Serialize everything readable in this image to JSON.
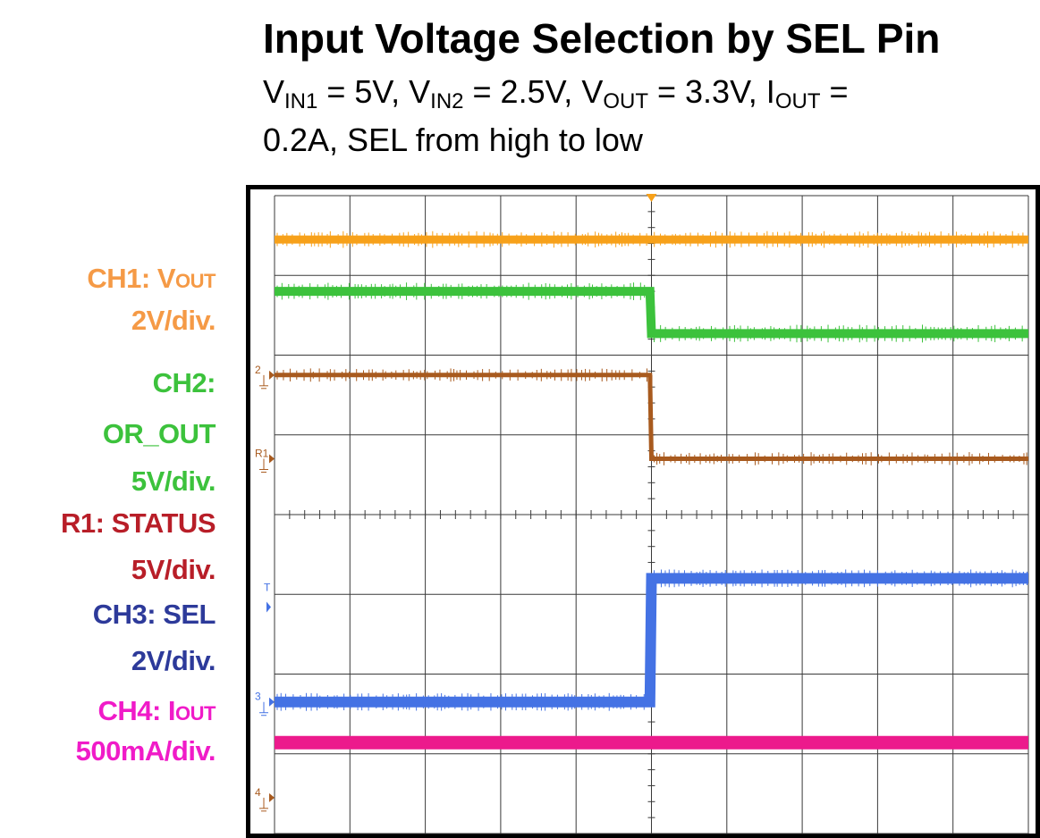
{
  "title": "Input Voltage Selection by SEL Pin",
  "subtitle": {
    "v": "V",
    "in1": "IN1",
    "eq1": " = 5V, ",
    "in2": "IN2",
    "eq2": " = 2.5V, ",
    "out": "OUT",
    "eq3": " = 3.3V, ",
    "i": "I",
    "eq4": " = ",
    "line2": "0.2A, SEL from high to low"
  },
  "labels": {
    "ch1_a": "CH1: V",
    "ch1_b": "OUT",
    "ch1_scale": "2V/div.",
    "ch2_a": "CH2:",
    "ch2_b": "OR_OUT",
    "ch2_scale": "5V/div.",
    "r1_a": "R1: STATUS",
    "r1_scale": "5V/div.",
    "ch3_a": "CH3: SEL",
    "ch3_scale": "2V/div.",
    "ch4_a": "CH4: I",
    "ch4_b": "OUT",
    "ch4_scale": "500mA/div."
  },
  "markers": {
    "ch2": "2",
    "r1": "R1",
    "ch3": "3",
    "ch4": "4",
    "trigger": "T"
  },
  "colors": {
    "ch1": "#F7A11A",
    "ch2": "#3CC23C",
    "r1": "#A85A1E",
    "ch3": "#4472E4",
    "ch4": "#EC1A8C",
    "ch1_label": "#F59A46",
    "r1_label": "#B81E28",
    "ch3_label": "#2D3A9A",
    "ch4_label": "#F01BC8",
    "grid": "#3a3a3a",
    "frame": "#000000"
  },
  "chart_data": {
    "type": "line",
    "title": "Input Voltage Selection by SEL Pin",
    "xlabel": "",
    "ylabel": "",
    "grid": true,
    "x_divisions": 10,
    "y_divisions": 8,
    "trigger_x_div": 5,
    "series": [
      {
        "name": "CH1: VOUT",
        "color": "#F7A11A",
        "width": 9,
        "noise": 4,
        "points": [
          [
            0,
            7.45
          ],
          [
            10,
            7.45
          ]
        ]
      },
      {
        "name": "CH2: OR_OUT",
        "color": "#3CC23C",
        "width": 10,
        "noise": 4,
        "points": [
          [
            0,
            6.8
          ],
          [
            4.98,
            6.8
          ],
          [
            5.0,
            6.27
          ],
          [
            10,
            6.27
          ]
        ]
      },
      {
        "name": "R1: STATUS",
        "color": "#A85A1E",
        "width": 5,
        "noise": 4,
        "points": [
          [
            0,
            5.75
          ],
          [
            4.98,
            5.75
          ],
          [
            5.0,
            4.7
          ],
          [
            10,
            4.7
          ]
        ]
      },
      {
        "name": "CH3: SEL",
        "color": "#4472E4",
        "width": 12,
        "noise": 3,
        "points": [
          [
            0,
            1.65
          ],
          [
            4.98,
            1.65
          ],
          [
            5.0,
            3.2
          ],
          [
            10,
            3.2
          ]
        ]
      },
      {
        "name": "CH4: IOUT",
        "color": "#EC1A8C",
        "width": 15,
        "noise": 0,
        "points": [
          [
            0,
            1.14
          ],
          [
            10,
            1.14
          ]
        ]
      }
    ],
    "channel_markers": [
      {
        "id": "2",
        "y_div": 5.75,
        "color": "#A85A1E"
      },
      {
        "id": "R1",
        "y_div": 4.7,
        "color": "#A85A1E"
      },
      {
        "id": "3",
        "y_div": 1.65,
        "color": "#4472E4"
      },
      {
        "id": "4",
        "y_div": 0.45,
        "color": "#A85A1E"
      }
    ]
  }
}
